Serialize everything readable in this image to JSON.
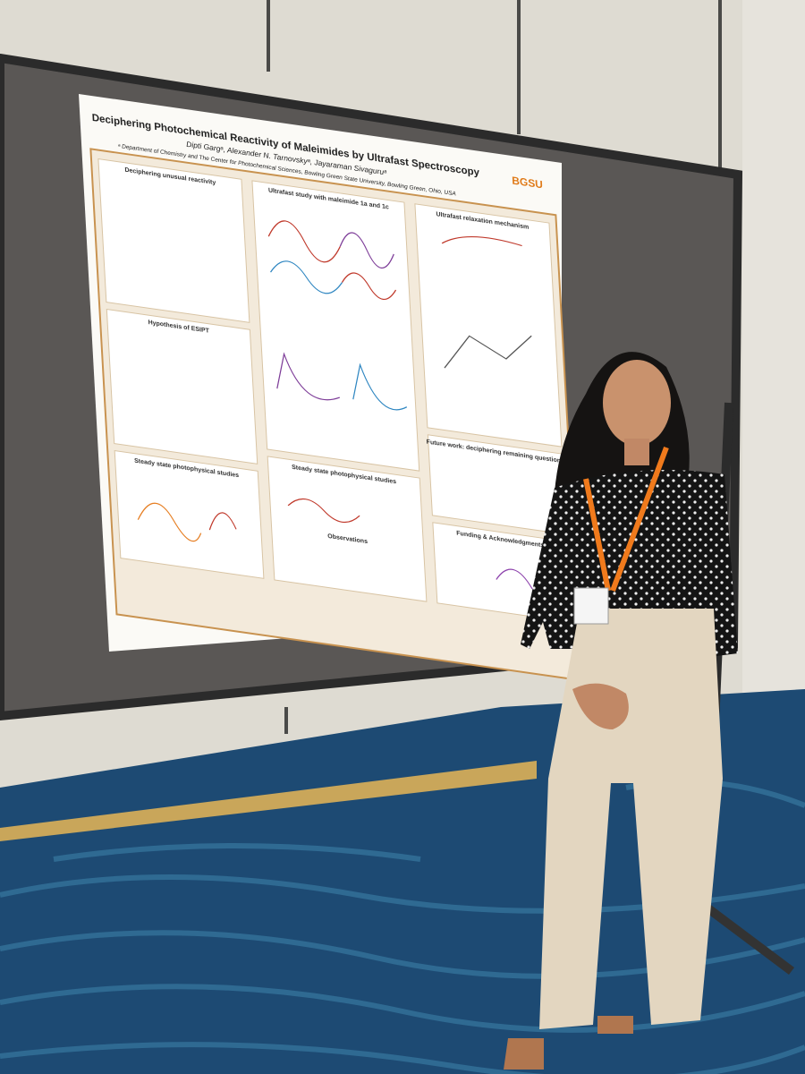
{
  "poster": {
    "title": "Deciphering Photochemical Reactivity of Maleimides by Ultrafast Spectroscopy",
    "authors": "Dipti Gargᵃ, Alexander N. Tarnovskyᵃ, Jayaraman Sivaguruᵃ",
    "affiliation": "ᵃ Department of Chemistry and The Center for Photochemical Sciences, Bowling Green State University, Bowling Green, Ohio, USA",
    "logo": "BGSU",
    "sections": [
      "Deciphering unusual reactivity",
      "Hypothesis of ESIPT",
      "Steady state photophysical studies",
      "Ultrafast study with maleimide 1a and 1c",
      "Steady state photophysical studies",
      "Ultrafast relaxation mechanism",
      "Future work: deciphering remaining questions",
      "Funding & Acknowledgments"
    ],
    "observations": "Observations"
  }
}
